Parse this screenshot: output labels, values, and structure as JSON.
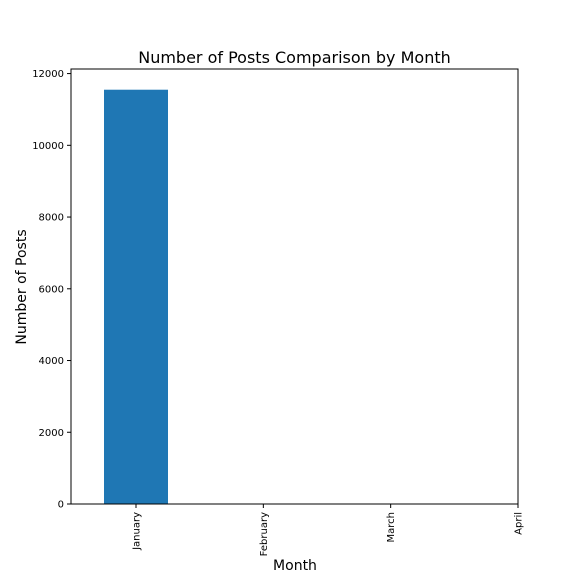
{
  "chart_data": {
    "type": "bar",
    "title": "Number of Posts Comparison by Month",
    "xlabel": "Month",
    "ylabel": "Number of Posts",
    "categories": [
      "January",
      "February",
      "March",
      "April"
    ],
    "values": [
      11550,
      0,
      0,
      0
    ],
    "ylim": [
      0,
      12127.5
    ],
    "yticks": [
      0,
      2000,
      4000,
      6000,
      8000,
      10000,
      12000
    ],
    "bar_color": "#1f77b4",
    "grid": false,
    "legend": "none"
  }
}
